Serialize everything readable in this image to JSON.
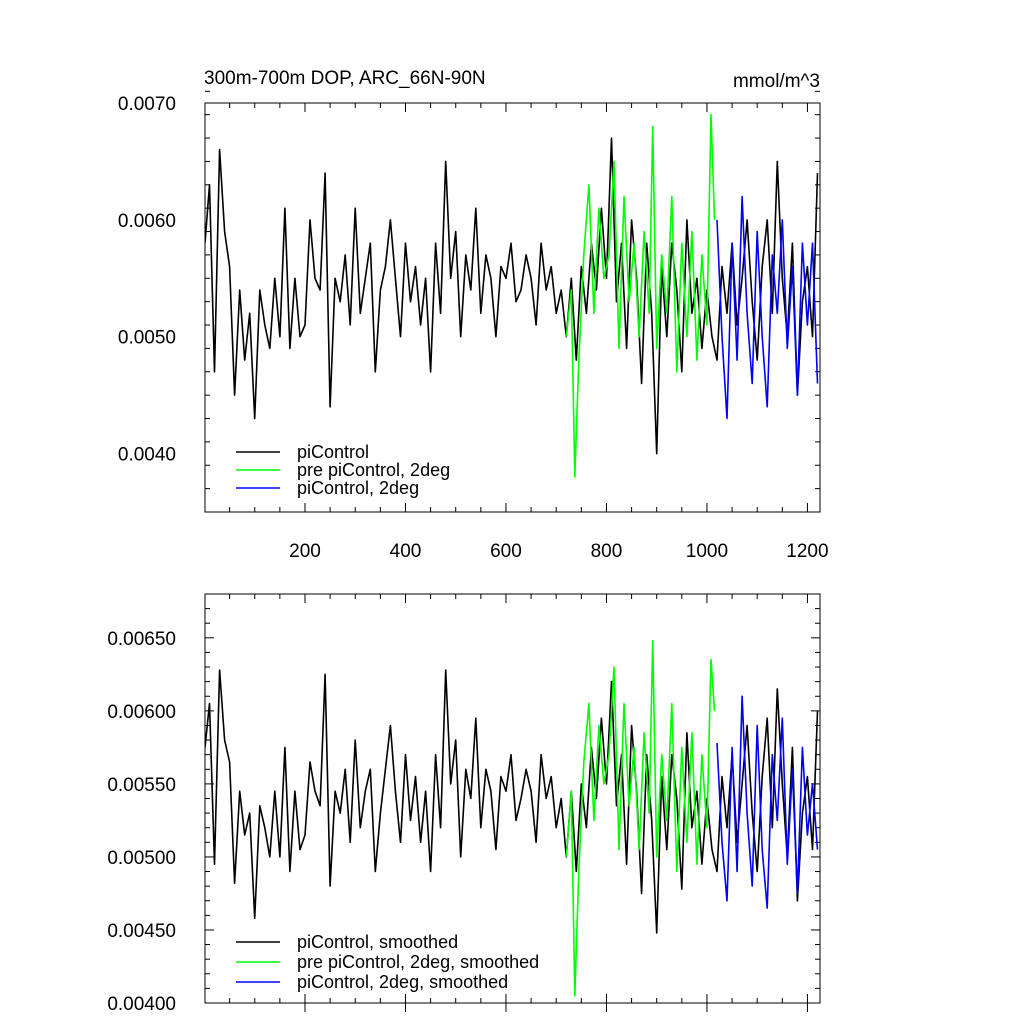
{
  "chart_data": [
    {
      "type": "line",
      "title": "300m-700m DOP, ARC_66N-90N",
      "units": "mmol/m^3",
      "xlim": [
        1,
        1225
      ],
      "ylim": [
        0.0035,
        0.007
      ],
      "xticks": [
        200,
        400,
        600,
        800,
        1000,
        1200
      ],
      "xtick_labels": [
        "200",
        "400",
        "600",
        "800",
        "1000",
        "1200"
      ],
      "yticks": [
        0.004,
        0.005,
        0.006,
        0.007
      ],
      "ytick_labels": [
        "0.0040",
        "0.0050",
        "0.0060",
        "0.0070"
      ],
      "legend_position": "bottom-left",
      "series": [
        {
          "name": "piControl",
          "color": "#000000",
          "x": [
            1,
            10,
            20,
            30,
            40,
            50,
            60,
            70,
            80,
            90,
            100,
            110,
            120,
            130,
            140,
            150,
            160,
            170,
            180,
            190,
            200,
            210,
            220,
            230,
            240,
            250,
            260,
            270,
            280,
            290,
            300,
            310,
            320,
            330,
            340,
            350,
            360,
            370,
            380,
            390,
            400,
            410,
            420,
            430,
            440,
            450,
            460,
            470,
            480,
            490,
            500,
            510,
            520,
            530,
            540,
            550,
            560,
            570,
            580,
            590,
            600,
            610,
            620,
            630,
            640,
            650,
            660,
            670,
            680,
            690,
            700,
            710,
            720,
            730,
            740,
            750,
            760,
            770,
            780,
            790,
            800,
            810,
            820,
            830,
            840,
            850,
            860,
            870,
            880,
            890,
            900,
            910,
            920,
            930,
            940,
            950,
            960,
            970,
            980,
            990,
            1000,
            1010,
            1020,
            1030,
            1040,
            1050,
            1060,
            1070,
            1080,
            1090,
            1100,
            1110,
            1120,
            1130,
            1140,
            1150,
            1160,
            1170,
            1180,
            1190,
            1200,
            1210,
            1220
          ],
          "values": [
            0.0058,
            0.0063,
            0.0047,
            0.0066,
            0.0059,
            0.0056,
            0.0045,
            0.0054,
            0.0048,
            0.0052,
            0.0043,
            0.0054,
            0.0051,
            0.0049,
            0.0055,
            0.005,
            0.0061,
            0.0049,
            0.0055,
            0.005,
            0.0051,
            0.006,
            0.0055,
            0.0054,
            0.0064,
            0.0044,
            0.0055,
            0.0053,
            0.0057,
            0.0051,
            0.0061,
            0.0052,
            0.0055,
            0.0058,
            0.0047,
            0.0054,
            0.0056,
            0.006,
            0.0055,
            0.005,
            0.0058,
            0.0053,
            0.0056,
            0.0051,
            0.0055,
            0.0047,
            0.0058,
            0.0052,
            0.0065,
            0.0055,
            0.0059,
            0.005,
            0.0057,
            0.0054,
            0.0061,
            0.0052,
            0.0057,
            0.0055,
            0.005,
            0.0056,
            0.0055,
            0.0058,
            0.0053,
            0.0054,
            0.0057,
            0.0055,
            0.0051,
            0.0058,
            0.0054,
            0.0056,
            0.0052,
            0.0054,
            0.005,
            0.0055,
            0.0048,
            0.0056,
            0.0052,
            0.0058,
            0.0054,
            0.0061,
            0.0055,
            0.0067,
            0.0053,
            0.0058,
            0.0049,
            0.006,
            0.0055,
            0.0046,
            0.0058,
            0.0052,
            0.004,
            0.0056,
            0.005,
            0.0058,
            0.0054,
            0.0047,
            0.006,
            0.0052,
            0.0055,
            0.0049,
            0.0054,
            0.005,
            0.0048,
            0.0056,
            0.0052,
            0.0058,
            0.0051,
            0.0055,
            0.006,
            0.0053,
            0.0048,
            0.0056,
            0.006,
            0.0052,
            0.0065,
            0.0055,
            0.005,
            0.0058,
            0.0045,
            0.0053,
            0.0056,
            0.005,
            0.0064
          ]
        },
        {
          "name": "pre piControl, 2deg",
          "color": "#00ff00",
          "x": [
            720,
            730,
            737,
            745,
            755,
            765,
            775,
            785,
            795,
            805,
            815,
            825,
            835,
            845,
            855,
            865,
            875,
            885,
            892,
            900,
            910,
            920,
            930,
            940,
            950,
            960,
            970,
            980,
            990,
            1000,
            1008,
            1015
          ],
          "values": [
            0.005,
            0.0054,
            0.0038,
            0.0048,
            0.0057,
            0.0063,
            0.0052,
            0.0061,
            0.0055,
            0.0057,
            0.0065,
            0.0049,
            0.0062,
            0.0053,
            0.0058,
            0.005,
            0.0059,
            0.0052,
            0.0068,
            0.0049,
            0.0057,
            0.0052,
            0.0062,
            0.0047,
            0.0058,
            0.005,
            0.0059,
            0.0048,
            0.0057,
            0.0051,
            0.0069,
            0.006
          ]
        },
        {
          "name": "piControl, 2deg",
          "color": "#0000ff",
          "x": [
            1020,
            1030,
            1040,
            1050,
            1060,
            1070,
            1080,
            1090,
            1100,
            1110,
            1120,
            1130,
            1140,
            1150,
            1160,
            1170,
            1180,
            1190,
            1200,
            1210,
            1220
          ],
          "values": [
            0.006,
            0.005,
            0.0043,
            0.0058,
            0.0048,
            0.0062,
            0.0052,
            0.0046,
            0.0059,
            0.005,
            0.0044,
            0.0057,
            0.0052,
            0.006,
            0.0049,
            0.0056,
            0.0045,
            0.0058,
            0.0051,
            0.0058,
            0.0046
          ]
        }
      ]
    },
    {
      "type": "line",
      "title": "",
      "xlim": [
        1,
        1225
      ],
      "ylim": [
        0.004,
        0.0068
      ],
      "xticks": [
        200,
        400,
        600,
        800,
        1000,
        1200
      ],
      "yticks": [
        0.004,
        0.0045,
        0.005,
        0.0055,
        0.006,
        0.0065
      ],
      "ytick_labels": [
        "0.00400",
        "0.00450",
        "0.00500",
        "0.00550",
        "0.00600",
        "0.00650"
      ],
      "legend_position": "bottom-left",
      "series": [
        {
          "name": "piControl, smoothed",
          "color": "#000000",
          "x": [
            1,
            10,
            20,
            30,
            40,
            50,
            60,
            70,
            80,
            90,
            100,
            110,
            120,
            130,
            140,
            150,
            160,
            170,
            180,
            190,
            200,
            210,
            220,
            230,
            240,
            250,
            260,
            270,
            280,
            290,
            300,
            310,
            320,
            330,
            340,
            350,
            360,
            370,
            380,
            390,
            400,
            410,
            420,
            430,
            440,
            450,
            460,
            470,
            480,
            490,
            500,
            510,
            520,
            530,
            540,
            550,
            560,
            570,
            580,
            590,
            600,
            610,
            620,
            630,
            640,
            650,
            660,
            670,
            680,
            690,
            700,
            710,
            720,
            730,
            740,
            750,
            760,
            770,
            780,
            790,
            800,
            810,
            820,
            830,
            840,
            850,
            860,
            870,
            880,
            890,
            900,
            910,
            920,
            930,
            940,
            950,
            960,
            970,
            980,
            990,
            1000,
            1010,
            1020,
            1030,
            1040,
            1050,
            1060,
            1070,
            1080,
            1090,
            1100,
            1110,
            1120,
            1130,
            1140,
            1150,
            1160,
            1170,
            1180,
            1190,
            1200,
            1210,
            1220
          ],
          "values": [
            0.00575,
            0.00605,
            0.00495,
            0.00628,
            0.0058,
            0.00565,
            0.00482,
            0.00545,
            0.00515,
            0.0053,
            0.00458,
            0.00535,
            0.0052,
            0.005,
            0.00545,
            0.005,
            0.00575,
            0.0049,
            0.00545,
            0.00505,
            0.00515,
            0.00565,
            0.00545,
            0.00535,
            0.00625,
            0.0048,
            0.00545,
            0.0053,
            0.0056,
            0.0051,
            0.0058,
            0.0052,
            0.00545,
            0.0056,
            0.0049,
            0.0053,
            0.0056,
            0.0059,
            0.00545,
            0.0051,
            0.0057,
            0.00525,
            0.00555,
            0.0051,
            0.00545,
            0.0049,
            0.0057,
            0.0052,
            0.00628,
            0.0055,
            0.0058,
            0.005,
            0.0056,
            0.0054,
            0.00595,
            0.0052,
            0.0056,
            0.00545,
            0.00505,
            0.00555,
            0.00545,
            0.0057,
            0.00525,
            0.0054,
            0.0056,
            0.00545,
            0.0051,
            0.0057,
            0.0054,
            0.00555,
            0.0052,
            0.0054,
            0.005,
            0.00545,
            0.0049,
            0.0055,
            0.0052,
            0.00575,
            0.0054,
            0.00595,
            0.0055,
            0.0062,
            0.00535,
            0.0057,
            0.00495,
            0.0059,
            0.00545,
            0.00475,
            0.0057,
            0.00525,
            0.00448,
            0.00555,
            0.00505,
            0.0057,
            0.0054,
            0.00478,
            0.00585,
            0.0052,
            0.00545,
            0.00495,
            0.0054,
            0.00505,
            0.0049,
            0.00555,
            0.0052,
            0.0057,
            0.0051,
            0.0055,
            0.0059,
            0.0053,
            0.0049,
            0.00555,
            0.00595,
            0.0052,
            0.00615,
            0.0055,
            0.005,
            0.00575,
            0.0047,
            0.0053,
            0.00555,
            0.00505,
            0.006
          ]
        },
        {
          "name": "pre piControl, 2deg, smoothed",
          "color": "#00ff00",
          "x": [
            720,
            730,
            737,
            745,
            755,
            765,
            775,
            785,
            795,
            805,
            815,
            825,
            835,
            845,
            855,
            865,
            875,
            885,
            892,
            900,
            910,
            920,
            930,
            940,
            950,
            960,
            970,
            980,
            990,
            1000,
            1008,
            1015
          ],
          "values": [
            0.005,
            0.00545,
            0.00405,
            0.0049,
            0.00565,
            0.00605,
            0.00525,
            0.0059,
            0.0055,
            0.0057,
            0.0063,
            0.00505,
            0.00605,
            0.00535,
            0.00575,
            0.00505,
            0.00585,
            0.0053,
            0.00648,
            0.005,
            0.0057,
            0.00525,
            0.00605,
            0.0049,
            0.00575,
            0.0051,
            0.00585,
            0.00495,
            0.0057,
            0.0052,
            0.00635,
            0.006
          ]
        },
        {
          "name": "piControl, 2deg, smoothed",
          "color": "#0000ff",
          "x": [
            1020,
            1030,
            1040,
            1050,
            1060,
            1070,
            1080,
            1090,
            1100,
            1110,
            1120,
            1130,
            1140,
            1150,
            1160,
            1170,
            1180,
            1190,
            1200,
            1210,
            1220
          ],
          "values": [
            0.00578,
            0.0051,
            0.0047,
            0.00575,
            0.0049,
            0.0061,
            0.0053,
            0.0048,
            0.0059,
            0.00505,
            0.00465,
            0.0057,
            0.00525,
            0.00595,
            0.00495,
            0.0056,
            0.00475,
            0.00575,
            0.00515,
            0.0055,
            0.00505
          ]
        }
      ]
    }
  ]
}
